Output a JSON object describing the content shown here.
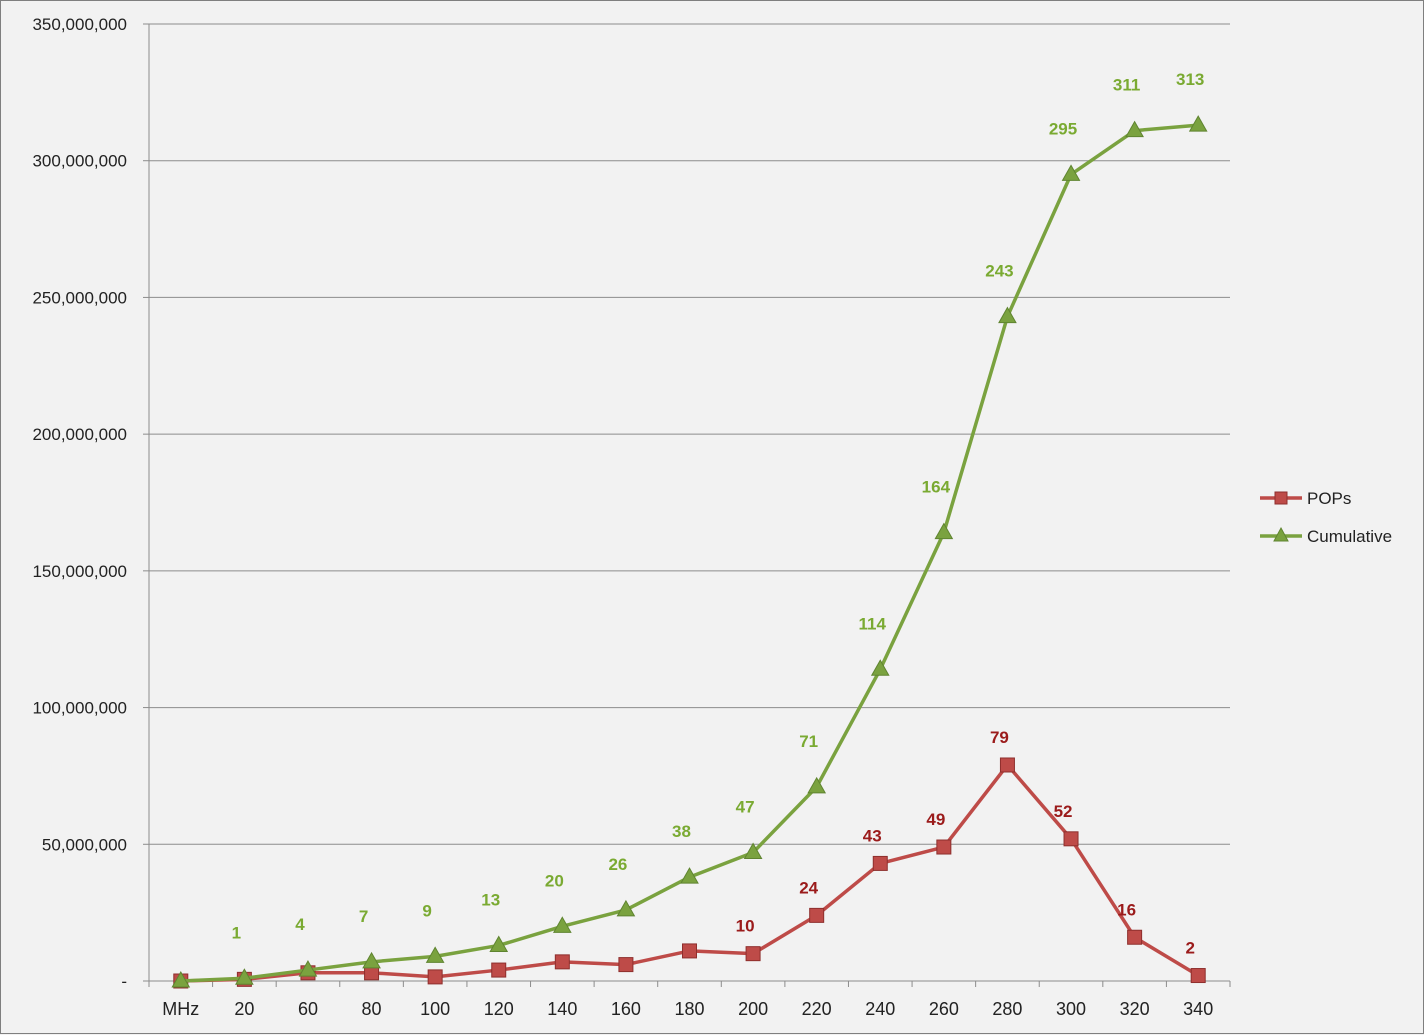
{
  "chart_data": {
    "type": "line",
    "categories": [
      "MHz",
      "20",
      "60",
      "80",
      "100",
      "120",
      "140",
      "160",
      "180",
      "200",
      "220",
      "240",
      "260",
      "280",
      "300",
      "320",
      "340"
    ],
    "ylim": [
      0,
      350000000
    ],
    "yticks": [
      0,
      50000000,
      100000000,
      150000000,
      200000000,
      250000000,
      300000000,
      350000000
    ],
    "ytick_labels": [
      "-",
      "50,000,000",
      "100,000,000",
      "150,000,000",
      "200,000,000",
      "250,000,000",
      "300,000,000",
      "350,000,000"
    ],
    "grid": true,
    "legend_position": "right",
    "series": [
      {
        "name": "POPs",
        "color": "#be4b48",
        "marker": "square",
        "values": [
          0,
          600000,
          3000000,
          3000000,
          1500000,
          4000000,
          7000000,
          6000000,
          11000000,
          10000000,
          24000000,
          43000000,
          49000000,
          79000000,
          52000000,
          16000000,
          2000000
        ],
        "data_labels": [
          "",
          "",
          "",
          "",
          "",
          "",
          "",
          "",
          "",
          "10",
          "24",
          "43",
          "49",
          "79",
          "52",
          "16",
          "2"
        ]
      },
      {
        "name": "Cumulative",
        "color": "#7aa23f",
        "marker": "triangle",
        "values": [
          0,
          1000000,
          4000000,
          7000000,
          9000000,
          13000000,
          20000000,
          26000000,
          38000000,
          47000000,
          71000000,
          114000000,
          164000000,
          243000000,
          295000000,
          311000000,
          313000000
        ],
        "data_labels": [
          "",
          "1",
          "4",
          "7",
          "9",
          "13",
          "20",
          "26",
          "38",
          "47",
          "71",
          "114",
          "164",
          "243",
          "295",
          "311",
          "313"
        ]
      }
    ]
  }
}
